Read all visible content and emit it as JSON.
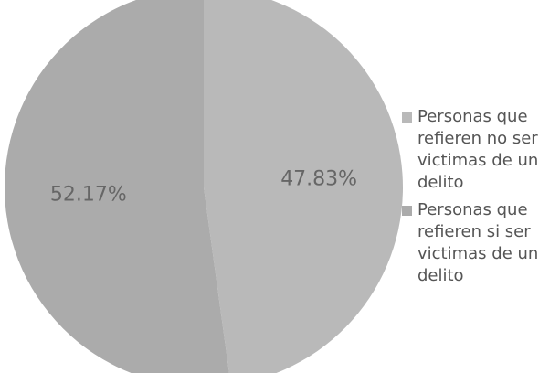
{
  "chart_data": {
    "type": "pie",
    "categories": [
      "Personas que refieren no ser victimas de un delito",
      "Personas que refieren si ser victimas de un delito"
    ],
    "values": [
      47.83,
      52.17
    ],
    "value_labels": [
      "47.83%",
      "52.17%"
    ],
    "colors": [
      "#b9b9b9",
      "#ababab"
    ],
    "legend": "right"
  }
}
